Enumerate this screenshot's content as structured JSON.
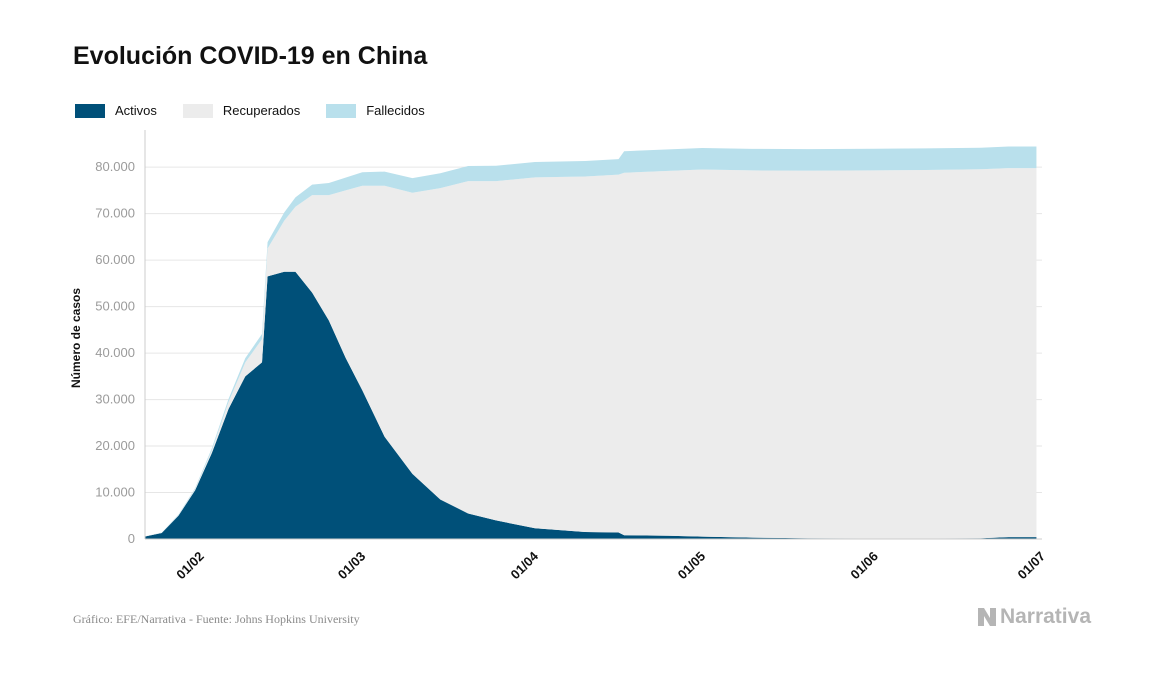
{
  "chart_data": {
    "type": "area",
    "title": "Evolución COVID-19 en China",
    "ylabel": "Número de casos",
    "xlabel": "",
    "ylim": [
      0,
      88000
    ],
    "yticks": [
      0,
      10000,
      20000,
      30000,
      40000,
      50000,
      60000,
      70000,
      80000
    ],
    "ytick_labels": [
      "0",
      "10.000",
      "20.000",
      "30.000",
      "40.000",
      "50.000",
      "60.000",
      "70.000",
      "80.000"
    ],
    "x_range": [
      "2020-01-22",
      "2020-07-01"
    ],
    "xticks": [
      "2020-02-01",
      "2020-03-01",
      "2020-04-01",
      "2020-05-01",
      "2020-06-01",
      "2020-07-01"
    ],
    "xtick_labels": [
      "01/02",
      "01/03",
      "01/04",
      "01/05",
      "01/06",
      "01/07"
    ],
    "stacked": true,
    "grid": "horizontal",
    "legend_position": "top-left",
    "x": [
      "2020-01-22",
      "2020-01-25",
      "2020-01-28",
      "2020-01-31",
      "2020-02-03",
      "2020-02-06",
      "2020-02-09",
      "2020-02-12",
      "2020-02-13",
      "2020-02-16",
      "2020-02-18",
      "2020-02-21",
      "2020-02-24",
      "2020-02-27",
      "2020-03-01",
      "2020-03-05",
      "2020-03-10",
      "2020-03-15",
      "2020-03-20",
      "2020-03-25",
      "2020-04-01",
      "2020-04-10",
      "2020-04-16",
      "2020-04-17",
      "2020-04-25",
      "2020-05-01",
      "2020-05-10",
      "2020-05-20",
      "2020-06-01",
      "2020-06-10",
      "2020-06-20",
      "2020-06-25",
      "2020-06-30"
    ],
    "series": [
      {
        "name": "Activos",
        "color": "#005079",
        "values": [
          550,
          1300,
          5000,
          10500,
          18500,
          28000,
          35000,
          38000,
          56500,
          57500,
          57500,
          53000,
          47000,
          39000,
          32000,
          22000,
          14000,
          8500,
          5500,
          4000,
          2300,
          1500,
          1400,
          800,
          700,
          500,
          300,
          150,
          120,
          100,
          150,
          400,
          400
        ]
      },
      {
        "name": "Recuperados",
        "color": "#ececec",
        "values": [
          30,
          40,
          100,
          250,
          600,
          1500,
          3000,
          5000,
          6000,
          11000,
          14000,
          21000,
          27000,
          36000,
          44000,
          54000,
          60500,
          67000,
          71500,
          73000,
          75500,
          76500,
          77000,
          78000,
          78500,
          79000,
          79000,
          79100,
          79200,
          79300,
          79400,
          79400,
          79400
        ]
      },
      {
        "name": "Fallecidos",
        "color": "#b9e0ec",
        "values": [
          17,
          56,
          132,
          213,
          425,
          636,
          910,
          1115,
          1370,
          1770,
          2000,
          2250,
          2600,
          2750,
          2900,
          3050,
          3150,
          3200,
          3250,
          3300,
          3320,
          3340,
          3345,
          4630,
          4635,
          4640,
          4640,
          4640,
          4640,
          4640,
          4640,
          4640,
          4640
        ]
      }
    ]
  },
  "source_text": "Gráfico: EFE/Narrativa - Fuente: Johns Hopkins University",
  "logo_text": "Narrativa",
  "colors": {
    "grid": "#e6e6e6",
    "axis_text": "#9b9b9b",
    "axis_line": "#cccccc"
  }
}
